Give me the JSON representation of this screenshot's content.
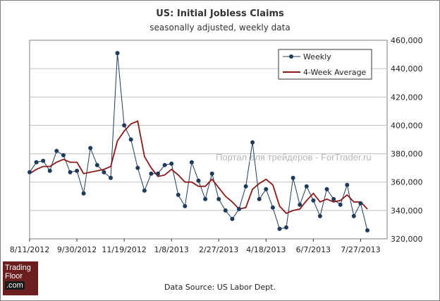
{
  "header": {
    "title": "US: Initial Jobless Claims",
    "subtitle": "seasonally adjusted, weekly data"
  },
  "footer": {
    "source": "Data Source: US Labor Dept.",
    "logo_lines": [
      "Trading",
      "Floor",
      ".com"
    ],
    "watermark": "Портал для трейдеров - ForTrader.ru"
  },
  "colors": {
    "weekly": "#1f3b5b",
    "average": "#8b1a1a",
    "grid": "#bfbfbf",
    "axis": "#333333"
  },
  "chart_data": {
    "type": "line",
    "title": "US: Initial Jobless Claims",
    "subtitle": "seasonally adjusted, weekly data",
    "xlabel": "",
    "ylabel": "",
    "ylim": [
      320000,
      460000
    ],
    "yticks": [
      "320,000",
      "340,000",
      "360,000",
      "380,000",
      "400,000",
      "420,000",
      "440,000",
      "460,000"
    ],
    "ytick_values": [
      320000,
      340000,
      360000,
      380000,
      400000,
      420000,
      440000,
      460000
    ],
    "xticks": [
      {
        "label": "8/11/2012",
        "index": 0
      },
      {
        "label": "9/30/2012",
        "index": 7
      },
      {
        "label": "11/19/2012",
        "index": 14
      },
      {
        "label": "1/8/2013",
        "index": 21
      },
      {
        "label": "2/27/2013",
        "index": 28
      },
      {
        "label": "4/18/2013",
        "index": 35
      },
      {
        "label": "6/7/2013",
        "index": 42
      },
      {
        "label": "7/27/2013",
        "index": 49
      }
    ],
    "grid": true,
    "legend_position": "top-right",
    "series": [
      {
        "name": "Weekly",
        "style": "line-markers",
        "values": [
          367000,
          374000,
          375000,
          368000,
          382000,
          379000,
          367000,
          368000,
          352000,
          384000,
          372000,
          367000,
          363000,
          451000,
          400000,
          390000,
          370000,
          354000,
          366000,
          366000,
          372000,
          373000,
          351000,
          343000,
          374000,
          361000,
          348000,
          366000,
          348000,
          340000,
          334000,
          341000,
          357000,
          388000,
          348000,
          355000,
          342000,
          327000,
          328000,
          363000,
          344000,
          357000,
          347000,
          336000,
          355000,
          348000,
          344000,
          358000,
          336000,
          345000,
          326000
        ]
      },
      {
        "name": "4-Week Average",
        "style": "line",
        "values": [
          366000,
          369000,
          371000,
          371000,
          374000,
          376000,
          374000,
          374000,
          366000,
          367000,
          368000,
          369000,
          371000,
          389000,
          396000,
          401000,
          403000,
          378000,
          370000,
          364000,
          365000,
          369000,
          365000,
          360000,
          360000,
          357000,
          357000,
          362000,
          356000,
          350000,
          346000,
          341000,
          342000,
          355000,
          359000,
          362000,
          358000,
          343000,
          338000,
          340000,
          341000,
          347000,
          352000,
          346000,
          348000,
          346000,
          347000,
          351000,
          346000,
          346000,
          341000
        ]
      }
    ]
  }
}
